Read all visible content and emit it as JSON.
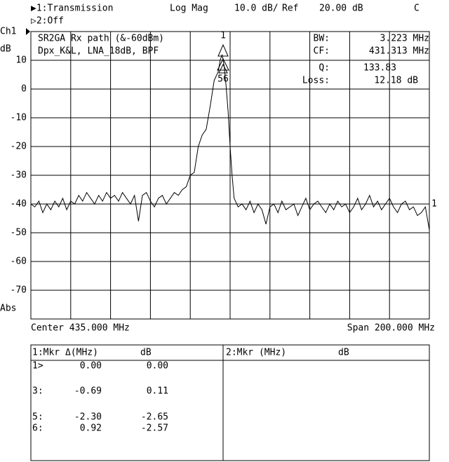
{
  "header": {
    "channel_line": "▶1:Transmission",
    "format": "Log Mag",
    "scale": "10.0 dB/",
    "ref_label": "Ref",
    "ref_value": "20.00 dB",
    "flag": "C",
    "channel2_line": "▷2:Off"
  },
  "chart_data": {
    "type": "line",
    "channel_label": "Ch1",
    "y_unit": "dB",
    "y_mode": "Abs",
    "title_lines": [
      "SR2GA Rx path (&-60dBm)",
      "Dpx_K&L, LNA_18dB, BPF"
    ],
    "stats": [
      {
        "label": "BW:",
        "value": "3.223 MHz"
      },
      {
        "label": "CF:",
        "value": "431.313 MHz"
      },
      {
        "label": "Q:",
        "value": "133.83"
      },
      {
        "label": "Loss:",
        "value": "12.18 dB"
      }
    ],
    "marker_labels": [
      "1",
      "56"
    ],
    "ref_marker": "1",
    "center": "Center 435.000 MHz",
    "span": "Span 200.000 MHz",
    "color": "#000000",
    "x": [
      335,
      337,
      339,
      341,
      343,
      345,
      347,
      349,
      351,
      353,
      355,
      357,
      359,
      361,
      363,
      365,
      367,
      369,
      371,
      373,
      375,
      377,
      379,
      381,
      383,
      385,
      387,
      389,
      391,
      393,
      395,
      397,
      399,
      401,
      403,
      405,
      407,
      409,
      411,
      413,
      415,
      417,
      419,
      421,
      423,
      425,
      427,
      429,
      430,
      431,
      432,
      433,
      434,
      435,
      436,
      437,
      439,
      441,
      443,
      445,
      447,
      449,
      451,
      453,
      455,
      457,
      459,
      461,
      463,
      465,
      467,
      469,
      471,
      473,
      475,
      477,
      479,
      481,
      483,
      485,
      487,
      489,
      491,
      493,
      495,
      497,
      499,
      501,
      503,
      505,
      507,
      509,
      511,
      513,
      515,
      517,
      519,
      521,
      523,
      525,
      527,
      529,
      531,
      533,
      535
    ],
    "values": [
      -40,
      -41,
      -39,
      -43,
      -40,
      -42,
      -39,
      -41,
      -38,
      -42,
      -39,
      -40,
      -37,
      -39,
      -36,
      -38,
      -40,
      -37,
      -39,
      -36,
      -38,
      -37,
      -39,
      -36,
      -38,
      -40,
      -37,
      -46,
      -37,
      -36,
      -39,
      -41,
      -38,
      -37,
      -40,
      -38,
      -36,
      -37,
      -35,
      -34,
      -30,
      -29,
      -20,
      -16,
      -14,
      -6,
      3,
      6,
      10,
      12,
      8,
      1,
      -8,
      -20,
      -30,
      -38,
      -41,
      -40,
      -42,
      -39,
      -43,
      -40,
      -42,
      -47,
      -41,
      -40,
      -43,
      -39,
      -42,
      -41,
      -40,
      -44,
      -41,
      -38,
      -42,
      -40,
      -39,
      -41,
      -43,
      -40,
      -42,
      -39,
      -41,
      -40,
      -43,
      -41,
      -38,
      -42,
      -40,
      -37,
      -41,
      -39,
      -42,
      -40,
      -38,
      -41,
      -43,
      -40,
      -39,
      -42,
      -41,
      -44,
      -43,
      -41,
      -49
    ],
    "xlim": [
      335,
      535
    ],
    "xticks": [
      355,
      375,
      395,
      415,
      435,
      455,
      475,
      495,
      515
    ],
    "ylim": [
      -80,
      20
    ],
    "yticks": [
      10,
      0,
      -10,
      -20,
      -30,
      -40,
      -50,
      -60,
      -70
    ],
    "grid": true
  },
  "marker_table": {
    "left": {
      "header": [
        "1:Mkr Δ(MHz)",
        "dB"
      ],
      "rows": [
        [
          "1>",
          "0.00",
          "0.00"
        ],
        [
          "3:",
          "-0.69",
          "0.11"
        ],
        [
          "5:",
          "-2.30",
          "-2.65"
        ],
        [
          "6:",
          "0.92",
          "-2.57"
        ]
      ]
    },
    "right": {
      "header": [
        "2:Mkr (MHz)",
        "dB"
      ]
    }
  }
}
